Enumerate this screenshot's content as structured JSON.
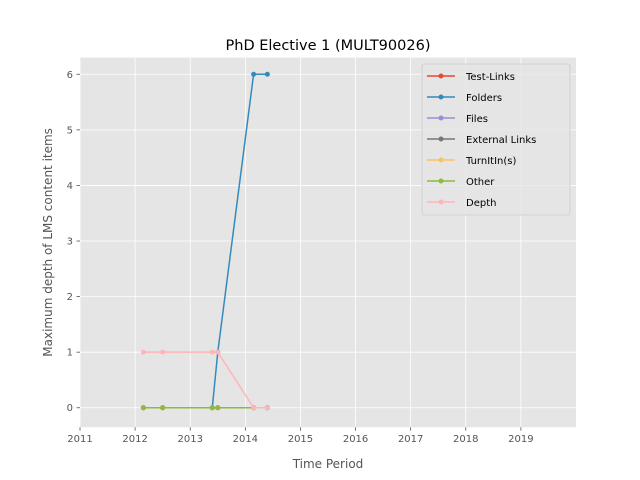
{
  "chart_data": {
    "type": "line",
    "title": "PhD Elective 1 (MULT90026)",
    "xlabel": "Time Period",
    "ylabel": "Maximum depth of LMS content items",
    "xlim": [
      2011,
      2020
    ],
    "ylim": [
      -0.35,
      6.3
    ],
    "x_ticks": [
      "2011",
      "2012",
      "2013",
      "2014",
      "2015",
      "2016",
      "2017",
      "2018",
      "2019"
    ],
    "y_ticks": [
      "0",
      "1",
      "2",
      "3",
      "4",
      "5",
      "6"
    ],
    "grid": true,
    "legend_position": "top-right",
    "x": [
      2012.15,
      2012.5,
      2013.4,
      2013.5,
      2014.15,
      2014.4
    ],
    "series": [
      {
        "name": "Test-Links",
        "color": "#E24A33",
        "values": [
          0,
          0,
          0,
          0,
          0,
          0
        ]
      },
      {
        "name": "Folders",
        "color": "#348ABD",
        "values": [
          0,
          0,
          0,
          1,
          6,
          6
        ]
      },
      {
        "name": "Files",
        "color": "#988ED5",
        "values": [
          0,
          0,
          0,
          0,
          0,
          0
        ]
      },
      {
        "name": "External Links",
        "color": "#777777",
        "values": [
          0,
          0,
          0,
          0,
          0,
          0
        ]
      },
      {
        "name": "TurnItIn(s)",
        "color": "#FBC15E",
        "values": [
          0,
          0,
          0,
          0,
          0,
          0
        ]
      },
      {
        "name": "Other",
        "color": "#8EBA42",
        "values": [
          0,
          0,
          0,
          0,
          0,
          0
        ]
      },
      {
        "name": "Depth",
        "color": "#FFB5B8",
        "values": [
          1,
          1,
          1,
          1,
          0,
          0
        ]
      }
    ]
  }
}
